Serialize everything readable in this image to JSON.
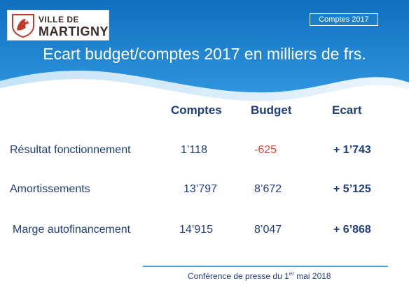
{
  "header": {
    "logo_line1": "VILLE DE",
    "logo_line2": "MARTIGNY",
    "tag": "Comptes 2017",
    "title": "Ecart budget/comptes 2017 en milliers de frs."
  },
  "table": {
    "columns": [
      "Comptes",
      "Budget",
      "Ecart"
    ],
    "rows": [
      {
        "label": "Résultat fonctionnement",
        "comptes": "1’118",
        "budget": "-625",
        "ecart": "+ 1’743"
      },
      {
        "label": "Amortissements",
        "comptes": "13’797",
        "budget": "8’672",
        "ecart": "+ 5’125"
      },
      {
        "label": "Marge autofinancement",
        "comptes": "14’915",
        "budget": "8’047",
        "ecart": "+ 6’868"
      }
    ]
  },
  "footer": {
    "text_before": "Conférence de presse du 1",
    "superscript": "er",
    "text_after": " mai 2018"
  },
  "colors": {
    "banner_blue": "#1b7fc9",
    "text_navy": "#1f3d7a",
    "negative_red": "#e0443a"
  }
}
